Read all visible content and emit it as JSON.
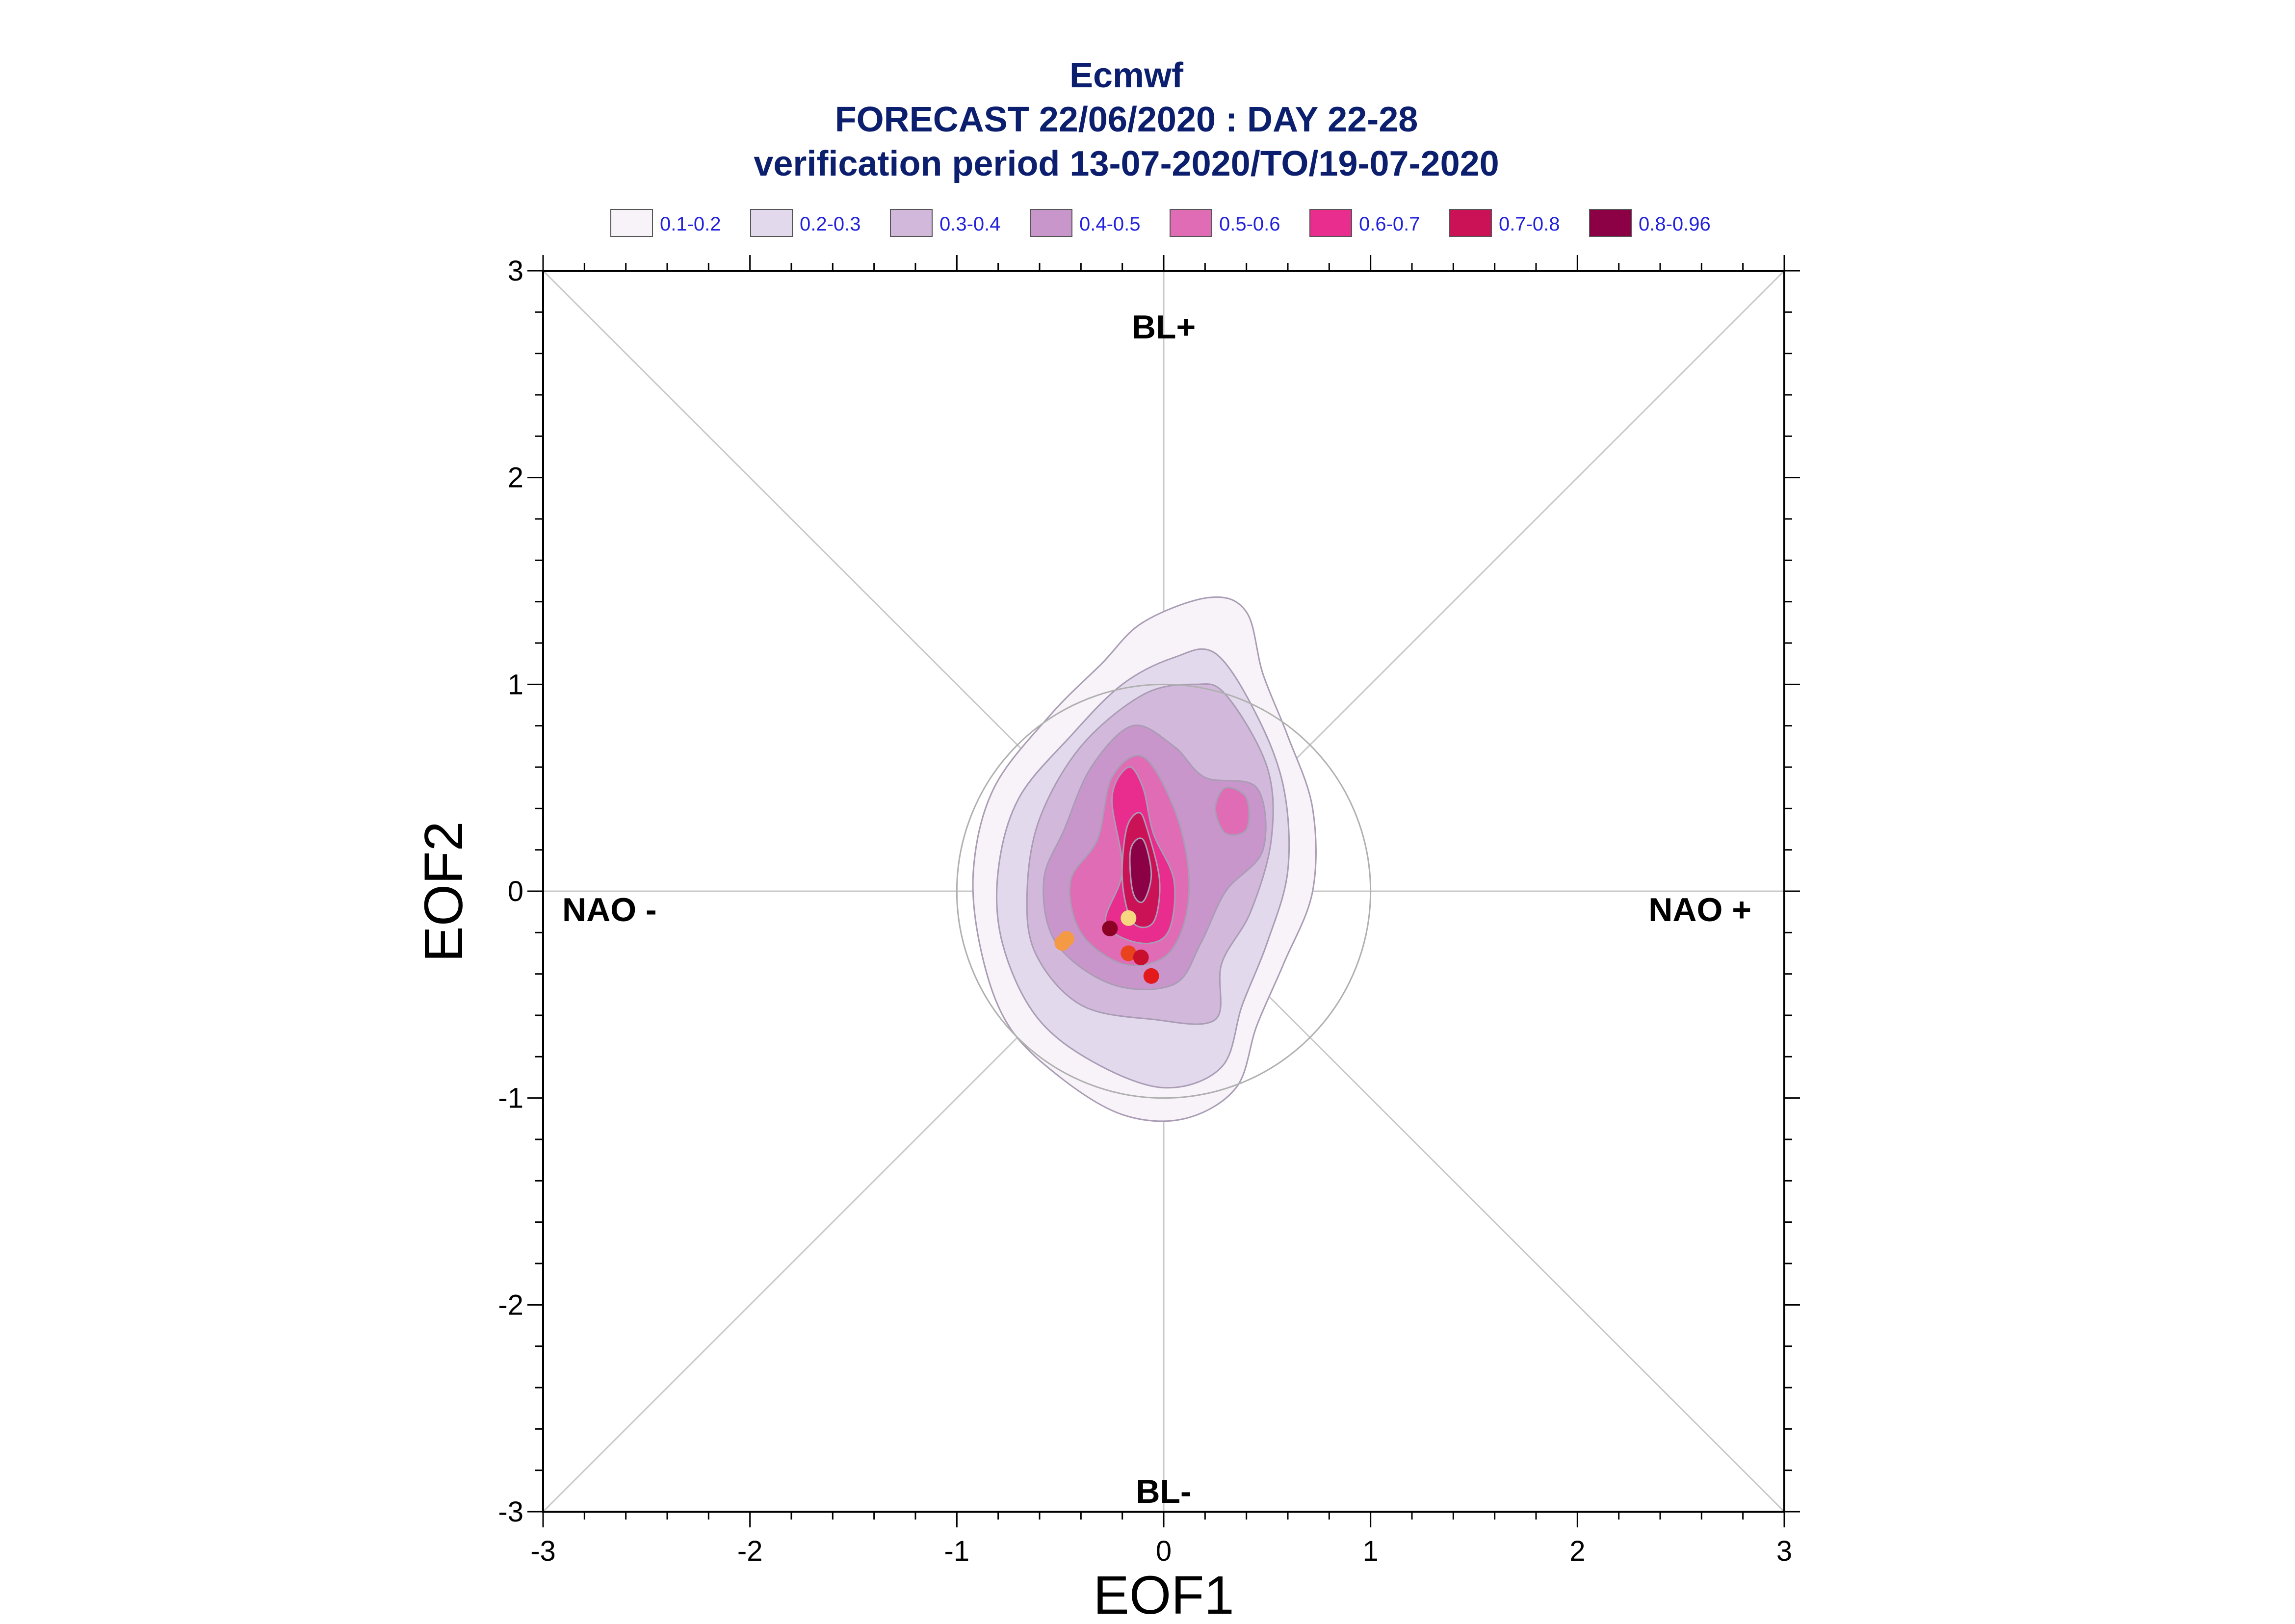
{
  "chart_data": {
    "type": "contour",
    "title": [
      "Ecmwf",
      "FORECAST 22/06/2020 : DAY 22-28",
      "verification period 13-07-2020/TO/19-07-2020"
    ],
    "xlabel": "EOF1",
    "ylabel": "EOF2",
    "xlim": [
      -3,
      3
    ],
    "ylim": [
      -3,
      3
    ],
    "xticks": [
      "-3",
      "-2",
      "-1",
      "0",
      "1",
      "2",
      "3"
    ],
    "yticks": [
      "-3",
      "-2",
      "-1",
      "0",
      "1",
      "2",
      "3"
    ],
    "regime_labels": {
      "top": "BL+",
      "bottom": "BL-",
      "left": "NAO -",
      "right": "NAO +"
    },
    "reference_circle_radius": 1,
    "legend": [
      {
        "label": "0.1-0.2",
        "color": "#f7f3f9"
      },
      {
        "label": "0.2-0.3",
        "color": "#e3d9ec"
      },
      {
        "label": "0.3-0.4",
        "color": "#d2b9dc"
      },
      {
        "label": "0.4-0.5",
        "color": "#c996cb"
      },
      {
        "label": "0.5-0.6",
        "color": "#df6cb4"
      },
      {
        "label": "0.6-0.7",
        "color": "#e92d8e"
      },
      {
        "label": "0.7-0.8",
        "color": "#cc1256"
      },
      {
        "label": "0.8-0.96",
        "color": "#8c0046"
      }
    ],
    "contours": [
      {
        "level": "0.1-0.2",
        "color": "#f7f3f9",
        "points": [
          [
            0.22,
            1.42
          ],
          [
            0.4,
            1.35
          ],
          [
            0.48,
            1.05
          ],
          [
            0.6,
            0.75
          ],
          [
            0.72,
            0.4
          ],
          [
            0.72,
            0.0
          ],
          [
            0.58,
            -0.35
          ],
          [
            0.45,
            -0.65
          ],
          [
            0.35,
            -0.95
          ],
          [
            0.1,
            -1.1
          ],
          [
            -0.2,
            -1.08
          ],
          [
            -0.5,
            -0.9
          ],
          [
            -0.75,
            -0.65
          ],
          [
            -0.88,
            -0.3
          ],
          [
            -0.92,
            0.1
          ],
          [
            -0.82,
            0.5
          ],
          [
            -0.55,
            0.85
          ],
          [
            -0.3,
            1.1
          ],
          [
            -0.1,
            1.3
          ]
        ]
      },
      {
        "level": "0.2-0.3",
        "color": "#e3d9ec",
        "points": [
          [
            0.25,
            1.15
          ],
          [
            0.45,
            0.85
          ],
          [
            0.58,
            0.5
          ],
          [
            0.6,
            0.1
          ],
          [
            0.5,
            -0.25
          ],
          [
            0.38,
            -0.55
          ],
          [
            0.28,
            -0.85
          ],
          [
            0.0,
            -0.95
          ],
          [
            -0.35,
            -0.82
          ],
          [
            -0.62,
            -0.6
          ],
          [
            -0.78,
            -0.25
          ],
          [
            -0.8,
            0.1
          ],
          [
            -0.7,
            0.45
          ],
          [
            -0.45,
            0.75
          ],
          [
            -0.2,
            1.0
          ],
          [
            0.05,
            1.13
          ]
        ]
      },
      {
        "level": "0.3-0.4",
        "color": "#d2b9dc",
        "points": [
          [
            0.3,
            0.95
          ],
          [
            0.5,
            0.6
          ],
          [
            0.52,
            0.25
          ],
          [
            0.42,
            -0.1
          ],
          [
            0.28,
            -0.35
          ],
          [
            0.25,
            -0.62
          ],
          [
            -0.05,
            -0.62
          ],
          [
            -0.4,
            -0.55
          ],
          [
            -0.62,
            -0.3
          ],
          [
            -0.66,
            0.0
          ],
          [
            -0.6,
            0.35
          ],
          [
            -0.4,
            0.7
          ],
          [
            -0.1,
            0.95
          ],
          [
            0.15,
            1.0
          ]
        ]
      },
      {
        "level": "0.4-0.5",
        "color": "#c996cb",
        "points": [
          [
            0.2,
            0.55
          ],
          [
            0.45,
            0.5
          ],
          [
            0.48,
            0.2
          ],
          [
            0.3,
            0.0
          ],
          [
            0.18,
            -0.25
          ],
          [
            0.05,
            -0.45
          ],
          [
            -0.25,
            -0.45
          ],
          [
            -0.52,
            -0.25
          ],
          [
            -0.58,
            0.05
          ],
          [
            -0.48,
            0.3
          ],
          [
            -0.35,
            0.6
          ],
          [
            -0.15,
            0.8
          ],
          [
            0.05,
            0.7
          ]
        ]
      },
      {
        "level": "0.5-0.6",
        "color": "#df6cb4",
        "points": [
          [
            0.05,
            0.4
          ],
          [
            0.12,
            0.1
          ],
          [
            0.1,
            -0.15
          ],
          [
            0.0,
            -0.32
          ],
          [
            -0.2,
            -0.35
          ],
          [
            -0.4,
            -0.2
          ],
          [
            -0.45,
            0.05
          ],
          [
            -0.32,
            0.25
          ],
          [
            -0.25,
            0.55
          ],
          [
            -0.1,
            0.65
          ]
        ]
      },
      {
        "level": "0.5-0.6",
        "color": "#df6cb4",
        "points": [
          [
            0.3,
            0.5
          ],
          [
            0.4,
            0.45
          ],
          [
            0.4,
            0.3
          ],
          [
            0.3,
            0.28
          ],
          [
            0.25,
            0.4
          ]
        ]
      },
      {
        "level": "0.6-0.7",
        "color": "#e92d8e",
        "points": [
          [
            -0.05,
            0.28
          ],
          [
            0.05,
            0.05
          ],
          [
            0.02,
            -0.2
          ],
          [
            -0.12,
            -0.25
          ],
          [
            -0.28,
            -0.15
          ],
          [
            -0.2,
            0.1
          ],
          [
            -0.25,
            0.45
          ],
          [
            -0.17,
            0.6
          ],
          [
            -0.1,
            0.5
          ]
        ]
      },
      {
        "level": "0.7-0.8",
        "color": "#cc1256",
        "points": [
          [
            -0.08,
            0.3
          ],
          [
            -0.02,
            0.05
          ],
          [
            -0.05,
            -0.15
          ],
          [
            -0.15,
            -0.15
          ],
          [
            -0.2,
            0.05
          ],
          [
            -0.18,
            0.3
          ],
          [
            -0.12,
            0.38
          ]
        ]
      },
      {
        "level": "0.8-0.96",
        "color": "#8c0046",
        "points": [
          [
            -0.1,
            0.25
          ],
          [
            -0.06,
            0.08
          ],
          [
            -0.1,
            -0.05
          ],
          [
            -0.15,
            0.0
          ],
          [
            -0.16,
            0.2
          ]
        ]
      }
    ],
    "points": [
      {
        "x": -0.49,
        "y": -0.25,
        "color": "#f59a44"
      },
      {
        "x": -0.47,
        "y": -0.23,
        "color": "#f59a44"
      },
      {
        "x": -0.17,
        "y": -0.13,
        "color": "#f7d880"
      },
      {
        "x": -0.26,
        "y": -0.18,
        "color": "#8c0025"
      },
      {
        "x": -0.17,
        "y": -0.3,
        "color": "#e8431c"
      },
      {
        "x": -0.11,
        "y": -0.32,
        "color": "#c8102e"
      },
      {
        "x": -0.06,
        "y": -0.41,
        "color": "#e31a1c"
      }
    ]
  }
}
